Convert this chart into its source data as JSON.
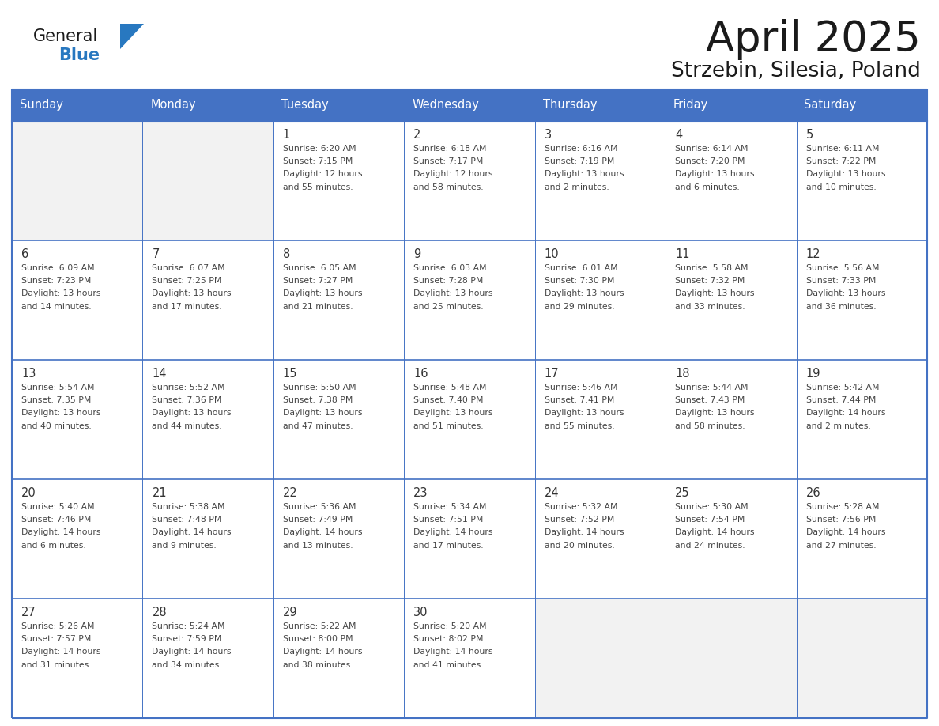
{
  "title": "April 2025",
  "subtitle": "Strzebin, Silesia, Poland",
  "days_of_week": [
    "Sunday",
    "Monday",
    "Tuesday",
    "Wednesday",
    "Thursday",
    "Friday",
    "Saturday"
  ],
  "header_bg": "#4472C4",
  "header_text": "#FFFFFF",
  "cell_bg_white": "#FFFFFF",
  "cell_bg_gray": "#F2F2F2",
  "border_color": "#4472C4",
  "row_divider_color": "#4472C4",
  "text_color": "#444444",
  "day_number_color": "#333333",
  "logo_general_color": "#1a1a1a",
  "logo_blue_color": "#2878C0",
  "calendar_data": [
    [
      {
        "day": null,
        "info": null
      },
      {
        "day": null,
        "info": null
      },
      {
        "day": 1,
        "info": "Sunrise: 6:20 AM\nSunset: 7:15 PM\nDaylight: 12 hours\nand 55 minutes."
      },
      {
        "day": 2,
        "info": "Sunrise: 6:18 AM\nSunset: 7:17 PM\nDaylight: 12 hours\nand 58 minutes."
      },
      {
        "day": 3,
        "info": "Sunrise: 6:16 AM\nSunset: 7:19 PM\nDaylight: 13 hours\nand 2 minutes."
      },
      {
        "day": 4,
        "info": "Sunrise: 6:14 AM\nSunset: 7:20 PM\nDaylight: 13 hours\nand 6 minutes."
      },
      {
        "day": 5,
        "info": "Sunrise: 6:11 AM\nSunset: 7:22 PM\nDaylight: 13 hours\nand 10 minutes."
      }
    ],
    [
      {
        "day": 6,
        "info": "Sunrise: 6:09 AM\nSunset: 7:23 PM\nDaylight: 13 hours\nand 14 minutes."
      },
      {
        "day": 7,
        "info": "Sunrise: 6:07 AM\nSunset: 7:25 PM\nDaylight: 13 hours\nand 17 minutes."
      },
      {
        "day": 8,
        "info": "Sunrise: 6:05 AM\nSunset: 7:27 PM\nDaylight: 13 hours\nand 21 minutes."
      },
      {
        "day": 9,
        "info": "Sunrise: 6:03 AM\nSunset: 7:28 PM\nDaylight: 13 hours\nand 25 minutes."
      },
      {
        "day": 10,
        "info": "Sunrise: 6:01 AM\nSunset: 7:30 PM\nDaylight: 13 hours\nand 29 minutes."
      },
      {
        "day": 11,
        "info": "Sunrise: 5:58 AM\nSunset: 7:32 PM\nDaylight: 13 hours\nand 33 minutes."
      },
      {
        "day": 12,
        "info": "Sunrise: 5:56 AM\nSunset: 7:33 PM\nDaylight: 13 hours\nand 36 minutes."
      }
    ],
    [
      {
        "day": 13,
        "info": "Sunrise: 5:54 AM\nSunset: 7:35 PM\nDaylight: 13 hours\nand 40 minutes."
      },
      {
        "day": 14,
        "info": "Sunrise: 5:52 AM\nSunset: 7:36 PM\nDaylight: 13 hours\nand 44 minutes."
      },
      {
        "day": 15,
        "info": "Sunrise: 5:50 AM\nSunset: 7:38 PM\nDaylight: 13 hours\nand 47 minutes."
      },
      {
        "day": 16,
        "info": "Sunrise: 5:48 AM\nSunset: 7:40 PM\nDaylight: 13 hours\nand 51 minutes."
      },
      {
        "day": 17,
        "info": "Sunrise: 5:46 AM\nSunset: 7:41 PM\nDaylight: 13 hours\nand 55 minutes."
      },
      {
        "day": 18,
        "info": "Sunrise: 5:44 AM\nSunset: 7:43 PM\nDaylight: 13 hours\nand 58 minutes."
      },
      {
        "day": 19,
        "info": "Sunrise: 5:42 AM\nSunset: 7:44 PM\nDaylight: 14 hours\nand 2 minutes."
      }
    ],
    [
      {
        "day": 20,
        "info": "Sunrise: 5:40 AM\nSunset: 7:46 PM\nDaylight: 14 hours\nand 6 minutes."
      },
      {
        "day": 21,
        "info": "Sunrise: 5:38 AM\nSunset: 7:48 PM\nDaylight: 14 hours\nand 9 minutes."
      },
      {
        "day": 22,
        "info": "Sunrise: 5:36 AM\nSunset: 7:49 PM\nDaylight: 14 hours\nand 13 minutes."
      },
      {
        "day": 23,
        "info": "Sunrise: 5:34 AM\nSunset: 7:51 PM\nDaylight: 14 hours\nand 17 minutes."
      },
      {
        "day": 24,
        "info": "Sunrise: 5:32 AM\nSunset: 7:52 PM\nDaylight: 14 hours\nand 20 minutes."
      },
      {
        "day": 25,
        "info": "Sunrise: 5:30 AM\nSunset: 7:54 PM\nDaylight: 14 hours\nand 24 minutes."
      },
      {
        "day": 26,
        "info": "Sunrise: 5:28 AM\nSunset: 7:56 PM\nDaylight: 14 hours\nand 27 minutes."
      }
    ],
    [
      {
        "day": 27,
        "info": "Sunrise: 5:26 AM\nSunset: 7:57 PM\nDaylight: 14 hours\nand 31 minutes."
      },
      {
        "day": 28,
        "info": "Sunrise: 5:24 AM\nSunset: 7:59 PM\nDaylight: 14 hours\nand 34 minutes."
      },
      {
        "day": 29,
        "info": "Sunrise: 5:22 AM\nSunset: 8:00 PM\nDaylight: 14 hours\nand 38 minutes."
      },
      {
        "day": 30,
        "info": "Sunrise: 5:20 AM\nSunset: 8:02 PM\nDaylight: 14 hours\nand 41 minutes."
      },
      {
        "day": null,
        "info": null
      },
      {
        "day": null,
        "info": null
      },
      {
        "day": null,
        "info": null
      }
    ]
  ]
}
